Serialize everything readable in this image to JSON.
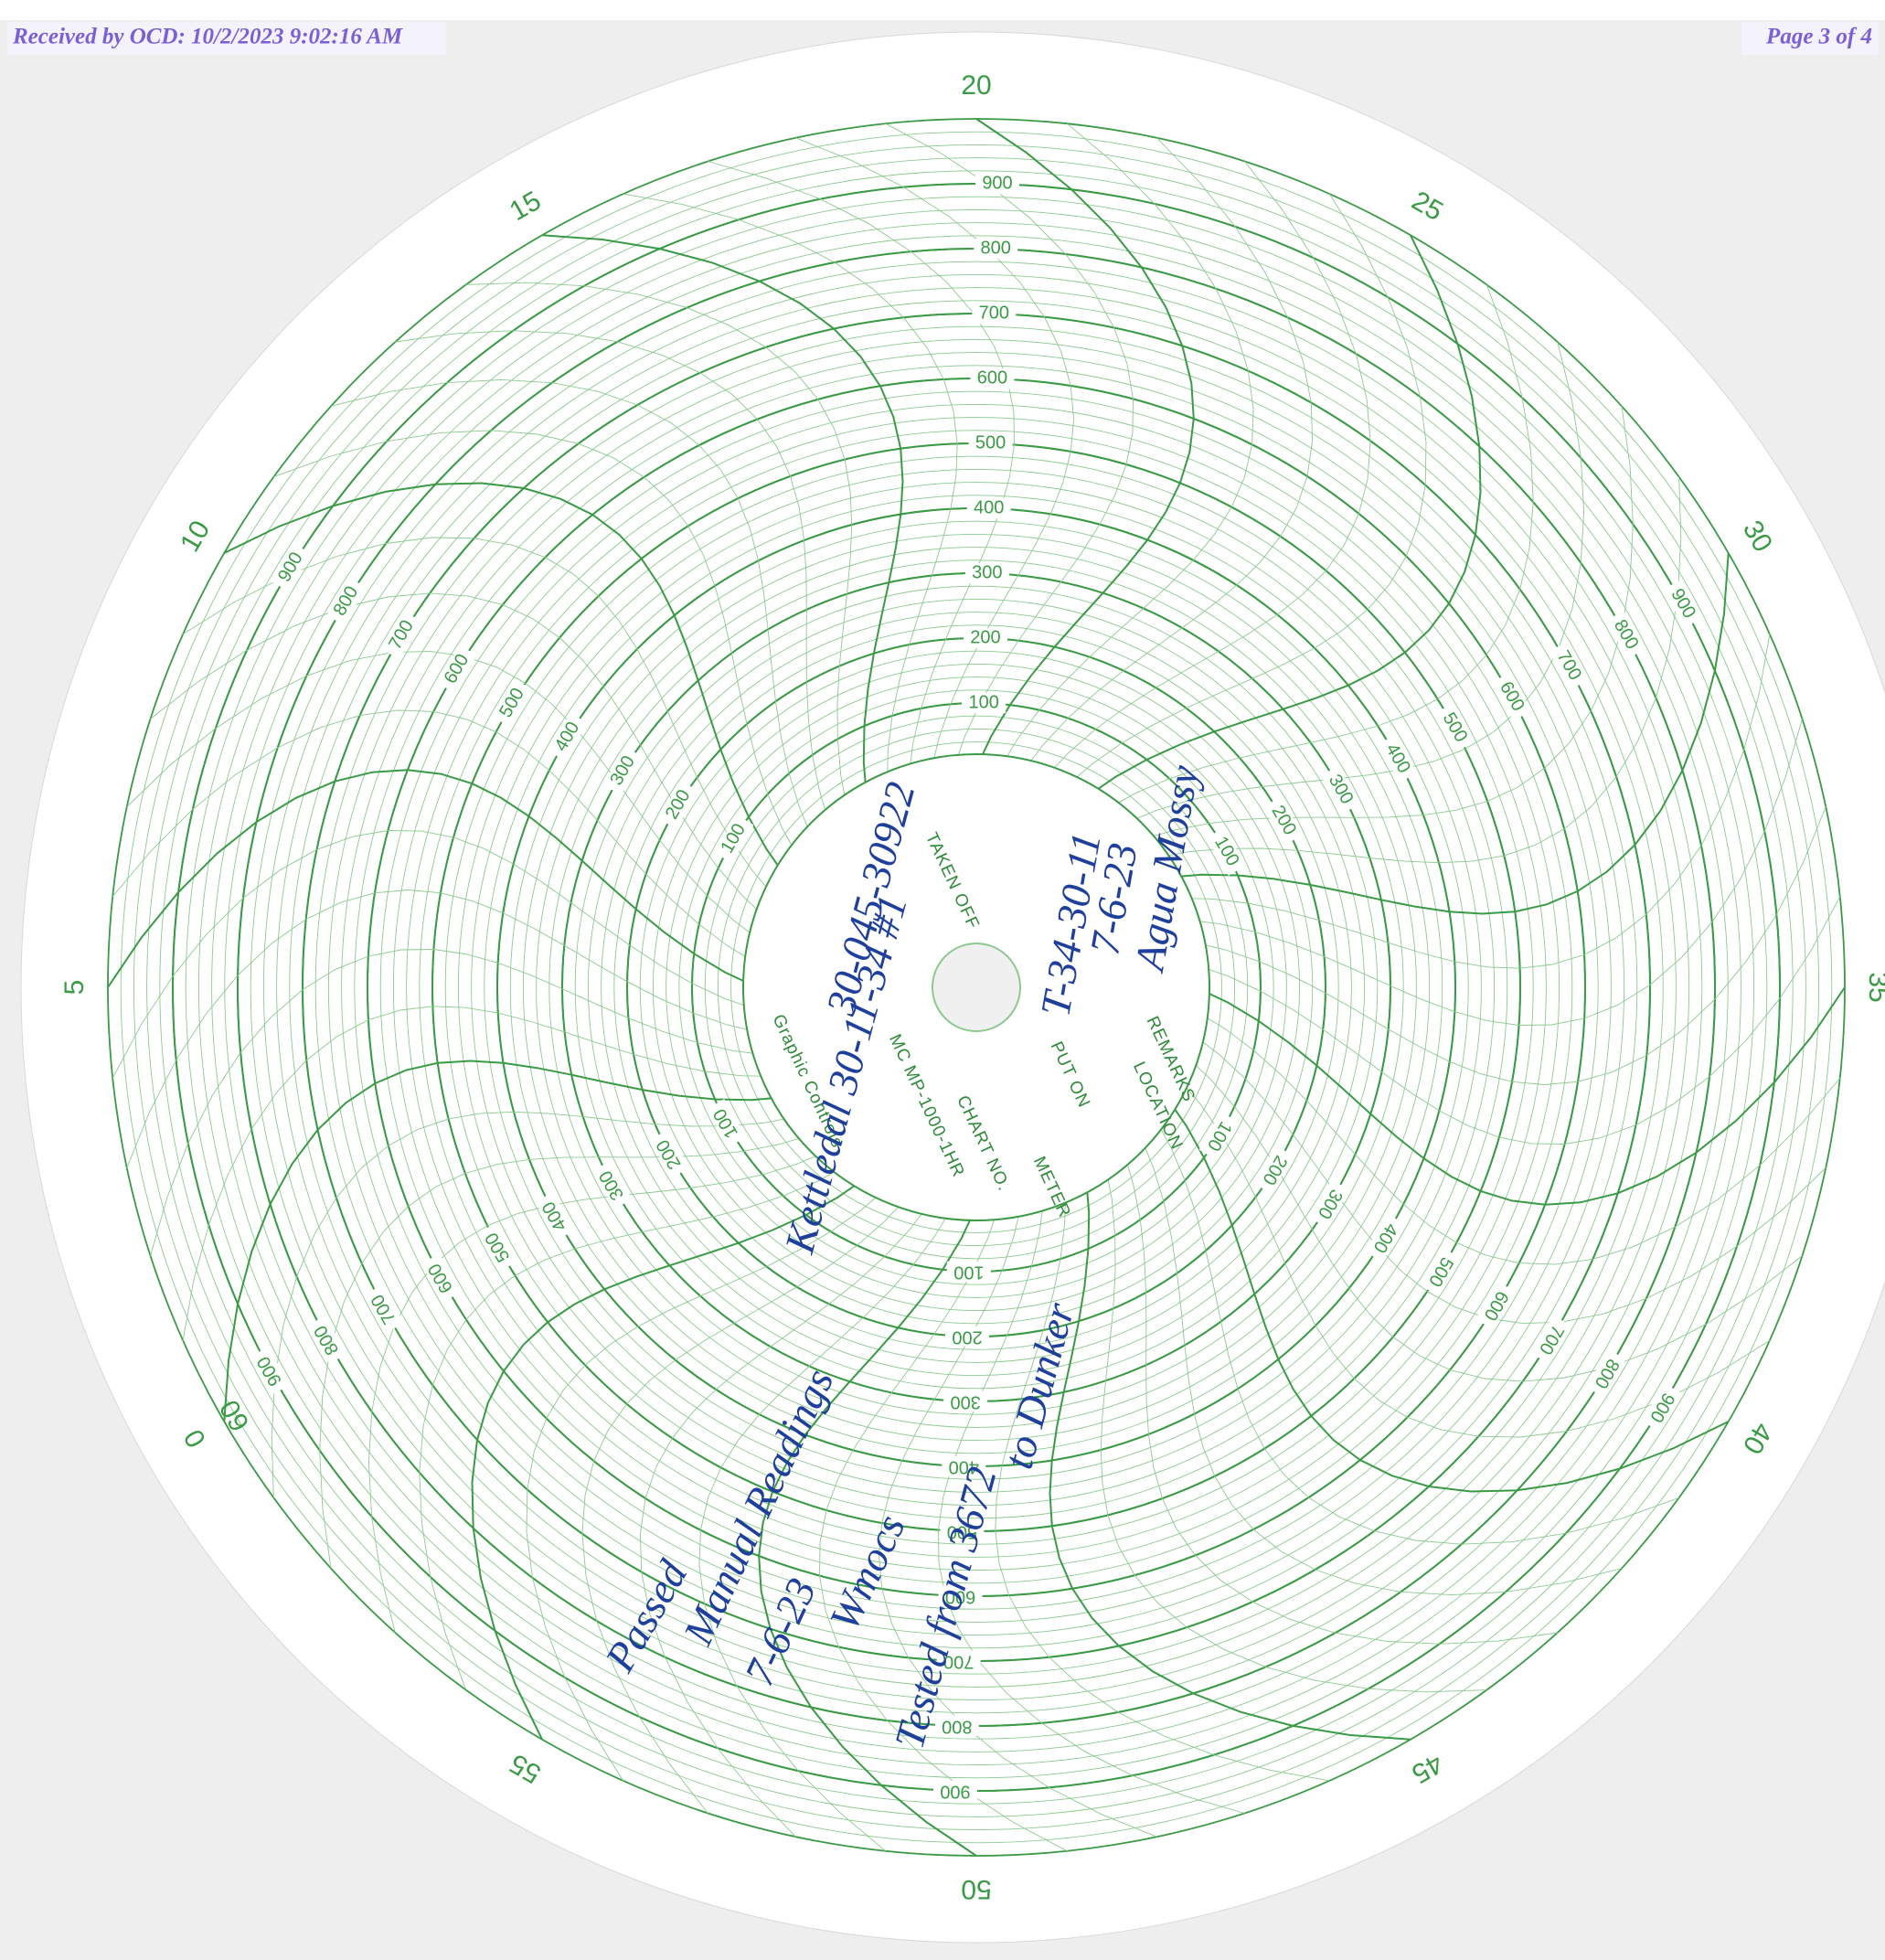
{
  "header": {
    "received": "Received by OCD: 10/2/2023 9:02:16 AM",
    "page": "Page 3 of 4"
  },
  "chart": {
    "minute_labels": [
      0,
      5,
      10,
      15,
      20,
      25,
      30,
      35,
      40,
      45,
      50,
      55,
      60
    ],
    "scale": {
      "range": [
        0,
        1000
      ],
      "ticks": [
        100,
        200,
        300,
        400,
        500,
        600,
        700,
        800,
        900
      ]
    }
  },
  "hub": {
    "taken_off": "TAKEN OFF",
    "chart_no": "CHART NO.",
    "chart_model": "MC MP-1000-1HR",
    "meter": "METER",
    "put_on": "PUT ON",
    "location": "LOCATION",
    "remarks": "REMARKS",
    "maker": "Graphic Controls"
  },
  "handwriting": [
    "Kettledal 30-11-34 #1",
    "30-045-30922",
    "T-34-30-11",
    "7-6-23",
    "Agua Mossy",
    "Passed",
    "Manual Readings",
    "7-6-23",
    "Wmocs",
    "Tested from 3672",
    "to Dunker"
  ]
}
